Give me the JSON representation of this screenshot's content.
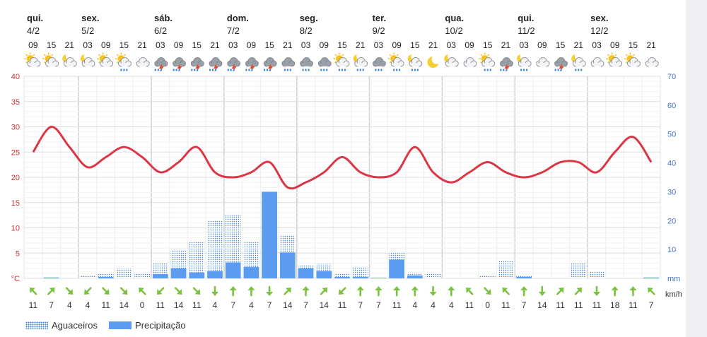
{
  "days": [
    {
      "day": "qui.",
      "date": "4/2"
    },
    {
      "day": "sex.",
      "date": "5/2"
    },
    {
      "day": "sáb.",
      "date": "6/2"
    },
    {
      "day": "dom.",
      "date": "7/2"
    },
    {
      "day": "seg.",
      "date": "8/2"
    },
    {
      "day": "ter.",
      "date": "9/2"
    },
    {
      "day": "qua.",
      "date": "10/2"
    },
    {
      "day": "qui.",
      "date": "11/2"
    },
    {
      "day": "sex.",
      "date": "12/2"
    }
  ],
  "hours": [
    "09",
    "15",
    "21",
    "03",
    "09",
    "15",
    "21",
    "03",
    "09",
    "15",
    "21",
    "03",
    "09",
    "15",
    "21",
    "03",
    "09",
    "15",
    "21",
    "03",
    "09",
    "15",
    "21",
    "03",
    "09",
    "15",
    "21",
    "03",
    "09",
    "15",
    "21",
    "03",
    "09",
    "15",
    "21"
  ],
  "weather_icons": [
    "sun-cloud",
    "sun-cloud",
    "moon-cloud",
    "moon-cloud",
    "sun-cloud",
    "sun-cloud-rain",
    "cloud",
    "thunder-cloud",
    "thunder-cloud",
    "thunder-cloud",
    "thunder-cloud",
    "thunder-cloud",
    "thunder-cloud",
    "thunder-cloud",
    "rain-cloud",
    "rain-cloud",
    "rain-cloud",
    "sun-cloud-rain",
    "moon-cloud-rain",
    "rain-cloud",
    "sun-cloud-rain",
    "moon-cloud-rain",
    "moon",
    "moon-cloud",
    "cloud",
    "sun-cloud-rain",
    "thunder-cloud",
    "moon-cloud-rain",
    "cloud",
    "thunder-cloud",
    "moon-cloud-rain",
    "cloud",
    "sun-cloud",
    "sun-cloud",
    "cloud"
  ],
  "colors": {
    "temperature": "#dc3545",
    "precipitation": "#5b9cf0",
    "showers": "#3b82d6",
    "wind_arrow": "#7cc142",
    "left_axis": "#cc3333",
    "right_axis": "#4472c4",
    "grid": "#e4e4e4"
  },
  "chart_data": {
    "type": "line",
    "x": [
      "09",
      "15",
      "21",
      "03",
      "09",
      "15",
      "21",
      "03",
      "09",
      "15",
      "21",
      "03",
      "09",
      "15",
      "21",
      "03",
      "09",
      "15",
      "21",
      "03",
      "09",
      "15",
      "21",
      "03",
      "09",
      "15",
      "21",
      "03",
      "09",
      "15",
      "21",
      "03",
      "09",
      "15",
      "21"
    ],
    "series": [
      {
        "values": [
          25,
          30,
          26,
          22,
          24,
          26,
          24,
          21,
          23,
          26,
          21,
          20,
          21,
          23,
          18,
          19,
          21,
          24,
          21,
          20,
          21,
          26,
          21,
          19,
          21,
          23,
          21,
          20,
          21,
          23,
          23,
          21,
          25,
          28,
          23
        ]
      }
    ],
    "bars": {
      "Aguaceiros": [
        0,
        0.3,
        0,
        1,
        1.5,
        3.5,
        1.5,
        5.5,
        10,
        12.5,
        20,
        22,
        12.5,
        0,
        15,
        4.5,
        5,
        1.5,
        4,
        0,
        9,
        2,
        1.5,
        0,
        0,
        1,
        6,
        1,
        0,
        0,
        5.5,
        2.5,
        0,
        0,
        0
      ],
      "Precipitação": [
        0,
        0.3,
        0,
        0,
        0.5,
        0,
        0,
        1.5,
        3.5,
        2,
        2.5,
        5.5,
        4,
        30,
        9,
        3.5,
        2.5,
        0.5,
        0.5,
        0.2,
        6.5,
        1,
        0,
        0,
        0,
        0,
        0,
        0.5,
        0,
        0,
        0,
        0,
        0,
        0,
        0.3
      ]
    },
    "wind_speed": [
      11,
      7,
      4,
      4,
      11,
      14,
      0,
      11,
      14,
      11,
      4,
      7,
      4,
      7,
      14,
      7,
      14,
      11,
      7,
      7,
      11,
      4,
      4,
      4,
      11,
      0,
      11,
      7,
      14,
      11,
      11,
      11,
      18,
      11,
      7
    ],
    "wind_dir": [
      225,
      315,
      45,
      135,
      45,
      45,
      225,
      135,
      45,
      45,
      90,
      270,
      270,
      90,
      315,
      270,
      315,
      135,
      270,
      270,
      270,
      270,
      90,
      270,
      225,
      45,
      225,
      270,
      90,
      315,
      315,
      90,
      270,
      270,
      225
    ],
    "y_left": {
      "ylim": [
        0,
        40
      ],
      "ticks": [
        "°C",
        "5",
        "10",
        "15",
        "20",
        "25",
        "30",
        "35",
        "40"
      ]
    },
    "y_right": {
      "ylim": [
        0,
        70
      ],
      "ticks": [
        "mm",
        "10",
        "20",
        "30",
        "40",
        "50",
        "60",
        "70"
      ]
    },
    "wind_unit": "km/h",
    "grid": true,
    "legend": {
      "position": "bottom-left",
      "items": [
        "Aguaceiros",
        "Precipitação"
      ]
    }
  }
}
